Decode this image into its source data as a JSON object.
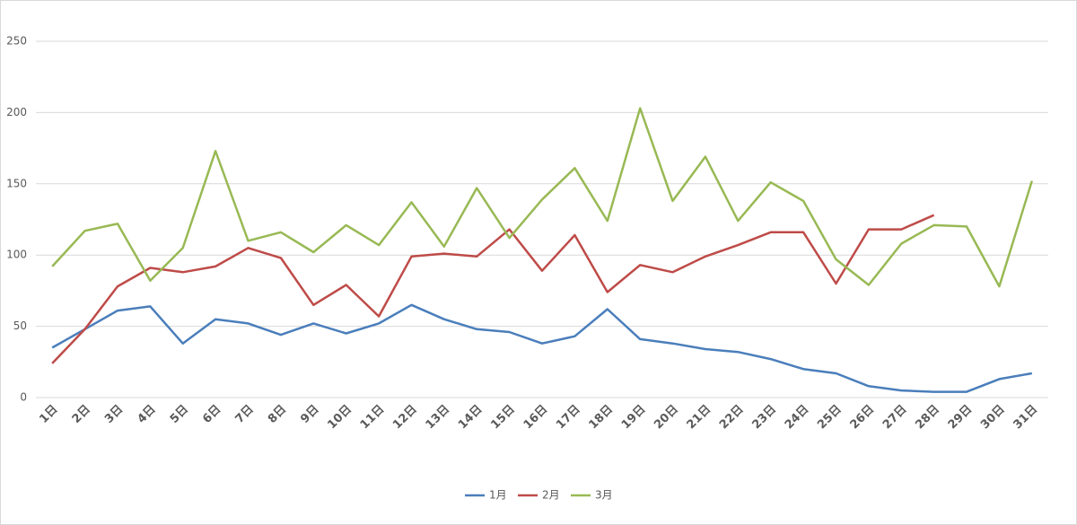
{
  "chart_data": {
    "type": "line",
    "categories": [
      "1日",
      "2日",
      "3日",
      "4日",
      "5日",
      "6日",
      "7日",
      "8日",
      "9日",
      "10日",
      "11日",
      "12日",
      "13日",
      "14日",
      "15日",
      "16日",
      "17日",
      "18日",
      "19日",
      "20日",
      "21日",
      "22日",
      "23日",
      "24日",
      "25日",
      "26日",
      "27日",
      "28日",
      "29日",
      "30日",
      "31日"
    ],
    "series": [
      {
        "name": "1月",
        "color": "#4a7ebb",
        "values": [
          35,
          48,
          61,
          64,
          38,
          55,
          52,
          44,
          52,
          45,
          52,
          65,
          55,
          48,
          46,
          38,
          43,
          62,
          41,
          38,
          34,
          32,
          27,
          20,
          17,
          8,
          5,
          4,
          4,
          13,
          17
        ]
      },
      {
        "name": "2月",
        "color": "#be4b48",
        "values": [
          24,
          48,
          78,
          91,
          88,
          92,
          105,
          98,
          65,
          79,
          57,
          99,
          101,
          99,
          118,
          89,
          114,
          74,
          93,
          88,
          99,
          107,
          116,
          116,
          80,
          118,
          118,
          128,
          null,
          null,
          null
        ]
      },
      {
        "name": "3月",
        "color": "#98b954",
        "values": [
          92,
          117,
          122,
          82,
          105,
          173,
          110,
          116,
          102,
          121,
          107,
          137,
          106,
          147,
          112,
          139,
          161,
          124,
          203,
          138,
          169,
          124,
          151,
          138,
          97,
          79,
          108,
          121,
          120,
          78,
          152
        ]
      }
    ],
    "ylim": [
      0,
      250
    ],
    "yticks": [
      0,
      50,
      100,
      150,
      200,
      250
    ],
    "grid": true,
    "legend": "bottom"
  }
}
